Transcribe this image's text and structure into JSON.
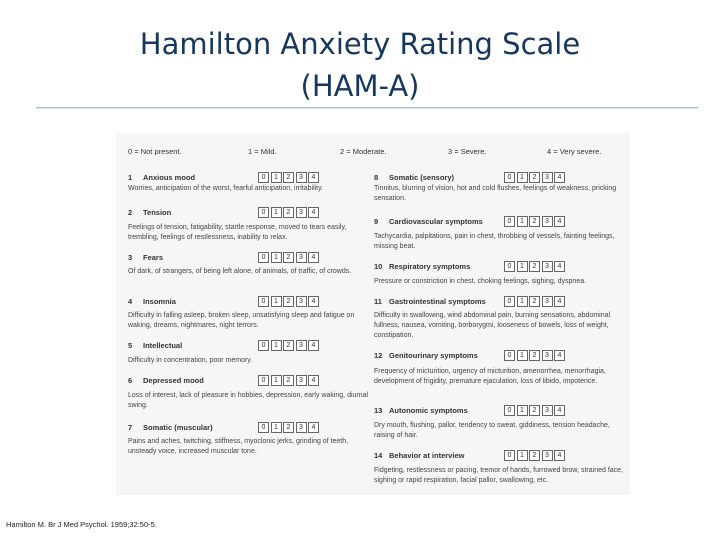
{
  "title_line1": "Hamilton Anxiety Rating Scale",
  "title_line2": "(HAM-A)",
  "scale": [
    "0 = Not present.",
    "1 = Mild.",
    "2 = Moderate.",
    "3 = Severe.",
    "4 = Very severe."
  ],
  "box_labels": [
    "0",
    "1",
    "2",
    "3",
    "4"
  ],
  "items": [
    {
      "num": "1",
      "name": "Anxious mood",
      "desc": "Worries, anticipation of the worst, fearful anticipation, irritability."
    },
    {
      "num": "2",
      "name": "Tension",
      "desc": "Feelings of tension, fatigability, startle response, moved to tears easily, trembling, feelings of restlessness, inability to relax."
    },
    {
      "num": "3",
      "name": "Fears",
      "desc": "Of dark, of strangers, of being left alone, of animals, of traffic, of crowds."
    },
    {
      "num": "4",
      "name": "Insomnia",
      "desc": "Difficulty in falling asleep, broken sleep, unsatisfying sleep and fatigue on waking, dreams, nightmares, night terrors."
    },
    {
      "num": "5",
      "name": "Intellectual",
      "desc": "Difficulty in concentration, poor memory."
    },
    {
      "num": "6",
      "name": "Depressed mood",
      "desc": "Loss of interest, lack of pleasure in hobbies, depression, early waking, diurnal swing."
    },
    {
      "num": "7",
      "name": "Somatic (muscular)",
      "desc": "Pains and aches, twitching, stiffness, myoclonic jerks, grinding of teeth, unsteady voice, increased muscular tone."
    },
    {
      "num": "8",
      "name": "Somatic (sensory)",
      "desc": "Tinnitus, blurring of vision, hot and cold flushes, feelings of weakness, pricking sensation."
    },
    {
      "num": "9",
      "name": "Cardiovascular symptoms",
      "desc": "Tachycardia, palpitations, pain in chest, throbbing of vessels, fainting feelings, missing beat."
    },
    {
      "num": "10",
      "name": "Respiratory symptoms",
      "desc": "Pressure or constriction in chest, choking feelings, sighing, dyspnea."
    },
    {
      "num": "11",
      "name": "Gastrointestinal symptoms",
      "desc": "Difficulty in swallowing, wind abdominal pain, burning sensations, abdominal fullness, nausea, vomiting, borborygmi, looseness of bowels, loss of weight, constipation."
    },
    {
      "num": "12",
      "name": "Genitourinary symptoms",
      "desc": "Frequency of micturition, urgency of micturition, amenorrhea, menorrhagia, development of frigidity, premature ejaculation, loss of libido, impotence."
    },
    {
      "num": "13",
      "name": "Autonomic symptoms",
      "desc": "Dry mouth, flushing, pallor, tendency to sweat, giddiness, tension headache, raising of hair."
    },
    {
      "num": "14",
      "name": "Behavior at interview",
      "desc": "Fidgeting, restlessness or pacing, tremor of hands, furrowed brow, strained face, sighing or rapid respiration, facial pallor, swallowing, etc."
    }
  ],
  "citation": "Hamilton M. Br J Med Psychol. 1959;32:50-5."
}
